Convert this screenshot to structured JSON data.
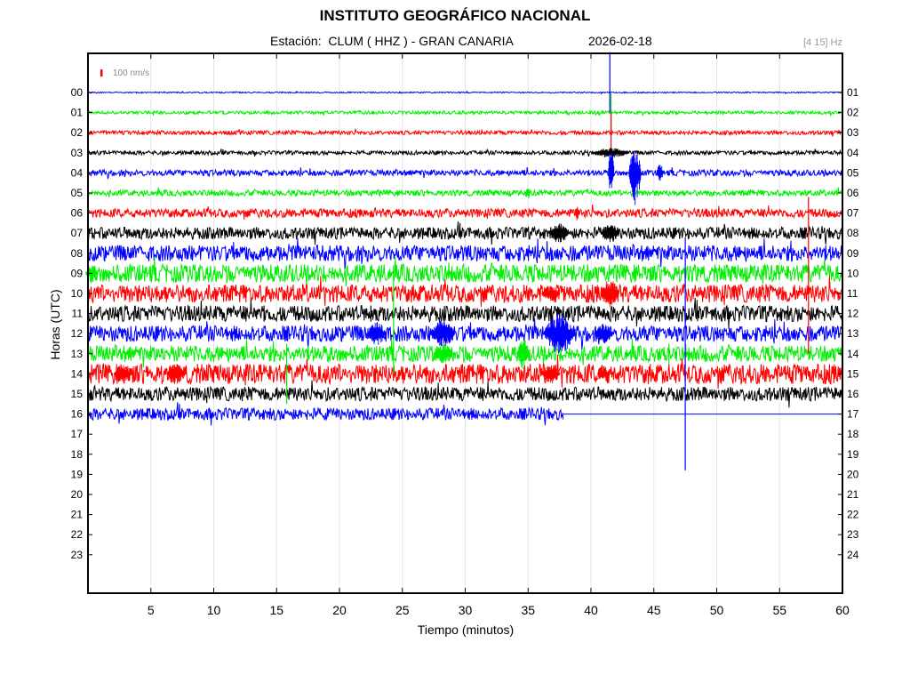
{
  "header": {
    "title": "INSTITUTO GEOGRÁFICO NACIONAL",
    "station": "Estación:  CLUM ( HHZ ) - GRAN CANARIA",
    "date": "2026-02-18",
    "filter": "[4 15] Hz"
  },
  "colors": {
    "cycle": [
      "#0000ff",
      "#00ee00",
      "#ff0000",
      "#000000"
    ],
    "grid": "#e6e6e6",
    "scale_bar": "#ff0000"
  },
  "chart_data": {
    "type": "line",
    "subtype": "helicorder",
    "title": "INSTITUTO GEOGRÁFICO NACIONAL",
    "xlabel": "Tiempo (minutos)",
    "ylabel": "Horas (UTC)",
    "xlim": [
      0,
      60
    ],
    "x_ticks": [
      5,
      10,
      15,
      20,
      25,
      30,
      35,
      40,
      45,
      50,
      55,
      60
    ],
    "grid": true,
    "scale_bar_label": "100 nm/s",
    "left_labels": [
      "00",
      "01",
      "02",
      "03",
      "04",
      "05",
      "06",
      "07",
      "08",
      "09",
      "10",
      "11",
      "12",
      "13",
      "14",
      "15",
      "16",
      "17",
      "18",
      "19",
      "20",
      "21",
      "22",
      "23"
    ],
    "right_labels": [
      "01",
      "02",
      "03",
      "04",
      "05",
      "06",
      "07",
      "08",
      "09",
      "10",
      "11",
      "12",
      "13",
      "14",
      "15",
      "16",
      "17",
      "18",
      "19",
      "20",
      "21",
      "22",
      "23",
      "24"
    ],
    "recorded_until": {
      "hour": 16,
      "minute": 37.8
    },
    "trace_amplitude": [
      0.03,
      0.08,
      0.1,
      0.1,
      0.15,
      0.15,
      0.22,
      0.3,
      0.4,
      0.45,
      0.45,
      0.4,
      0.4,
      0.4,
      0.5,
      0.35,
      0.3
    ],
    "events": [
      {
        "hour": 0,
        "minute": 41.5,
        "up": 2.0,
        "down": 1.0
      },
      {
        "hour": 1,
        "minute": 41.6,
        "up": 1.0,
        "down": 1.0
      },
      {
        "hour": 2,
        "minute": 41.6,
        "up": 1.0,
        "down": 1.0
      },
      {
        "hour": 3,
        "minute": 41.6,
        "up": 0.25,
        "down": 0.25,
        "duration": 3
      },
      {
        "hour": 4,
        "minute": 41.6,
        "up": 1.3,
        "down": 1.2,
        "duration": 0.5
      },
      {
        "hour": 4,
        "minute": 43.5,
        "up": 1.3,
        "down": 1.6,
        "duration": 1
      },
      {
        "hour": 4,
        "minute": 45.5,
        "up": 0.5,
        "down": 0.4,
        "duration": 0.5
      },
      {
        "hour": 5,
        "minute": 35,
        "up": 0.3,
        "down": 0.3,
        "duration": 0.4
      },
      {
        "hour": 6,
        "minute": 38.9,
        "up": 0.4,
        "down": 0.4,
        "duration": 0.3
      },
      {
        "hour": 6,
        "minute": 57.3,
        "up": 0.8,
        "down": 7.0
      },
      {
        "hour": 7,
        "minute": 37.5,
        "up": 0.5,
        "down": 0.5,
        "duration": 1.5
      },
      {
        "hour": 7,
        "minute": 41.5,
        "up": 0.5,
        "down": 0.5,
        "duration": 1.5
      },
      {
        "hour": 8,
        "minute": 47.5,
        "up": 0.8,
        "down": 10.8
      },
      {
        "hour": 9,
        "minute": 0.3,
        "up": 0.4,
        "down": 0.4,
        "duration": 1
      },
      {
        "hour": 9,
        "minute": 24.3,
        "up": 0.4,
        "down": 5.0
      },
      {
        "hour": 10,
        "minute": 36.8,
        "up": 0.4,
        "down": 0.4,
        "duration": 1.5
      },
      {
        "hour": 10,
        "minute": 41.5,
        "up": 0.7,
        "down": 0.7,
        "duration": 1.5
      },
      {
        "hour": 11,
        "minute": 14,
        "up": 0.4,
        "down": 0.4
      },
      {
        "hour": 11,
        "minute": 22.5,
        "up": 0.4,
        "down": 0.4
      },
      {
        "hour": 12,
        "minute": 23,
        "up": 0.6,
        "down": 0.6,
        "duration": 1.5
      },
      {
        "hour": 12,
        "minute": 28.2,
        "up": 0.7,
        "down": 0.7,
        "duration": 2
      },
      {
        "hour": 12,
        "minute": 37.5,
        "up": 1.0,
        "down": 1.0,
        "duration": 2.5
      },
      {
        "hour": 12,
        "minute": 41,
        "up": 0.5,
        "down": 0.5,
        "duration": 1.5
      },
      {
        "hour": 13,
        "minute": 15.8,
        "up": 0.5,
        "down": 2.5
      },
      {
        "hour": 13,
        "minute": 28.3,
        "up": 0.5,
        "down": 0.5,
        "duration": 1.5
      },
      {
        "hour": 13,
        "minute": 34.6,
        "up": 0.8,
        "down": 0.8,
        "duration": 1
      },
      {
        "hour": 13,
        "minute": 46.2,
        "up": 0.5,
        "down": 0.5
      },
      {
        "hour": 14,
        "minute": 2.8,
        "up": 0.5,
        "down": 0.5,
        "duration": 1.5
      },
      {
        "hour": 14,
        "minute": 7,
        "up": 0.5,
        "down": 0.5,
        "duration": 1.5
      },
      {
        "hour": 14,
        "minute": 36.8,
        "up": 0.5,
        "down": 0.5,
        "duration": 1.5
      },
      {
        "hour": 14,
        "minute": 41,
        "up": 0.4,
        "down": 0.4,
        "duration": 1
      }
    ]
  }
}
